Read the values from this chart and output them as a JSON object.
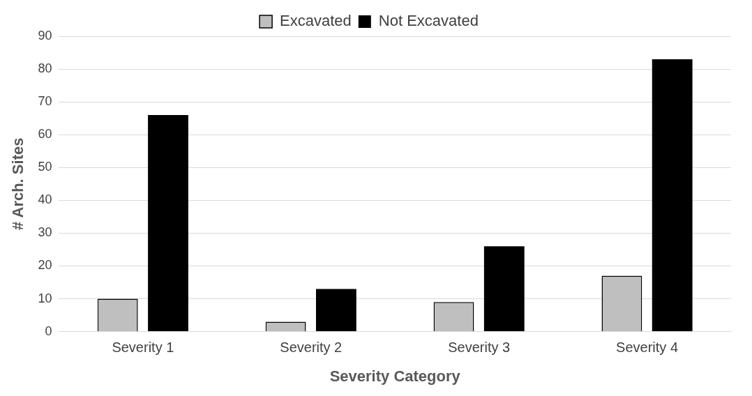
{
  "chart_data": {
    "type": "bar",
    "xlabel": "Severity Category",
    "ylabel": "# Arch. Sites",
    "categories": [
      "Severity 1",
      "Severity 2",
      "Severity 3",
      "Severity 4"
    ],
    "series": [
      {
        "name": "Excavated",
        "color": "#bfbfbf",
        "values": [
          10,
          3,
          9,
          17
        ]
      },
      {
        "name": "Not Excavated",
        "color": "#000000",
        "values": [
          66,
          13,
          26,
          83
        ]
      }
    ],
    "ylim": [
      0,
      90
    ],
    "yticks": [
      0,
      10,
      20,
      30,
      40,
      50,
      60,
      70,
      80,
      90
    ],
    "grid": "y",
    "legend": "top"
  }
}
